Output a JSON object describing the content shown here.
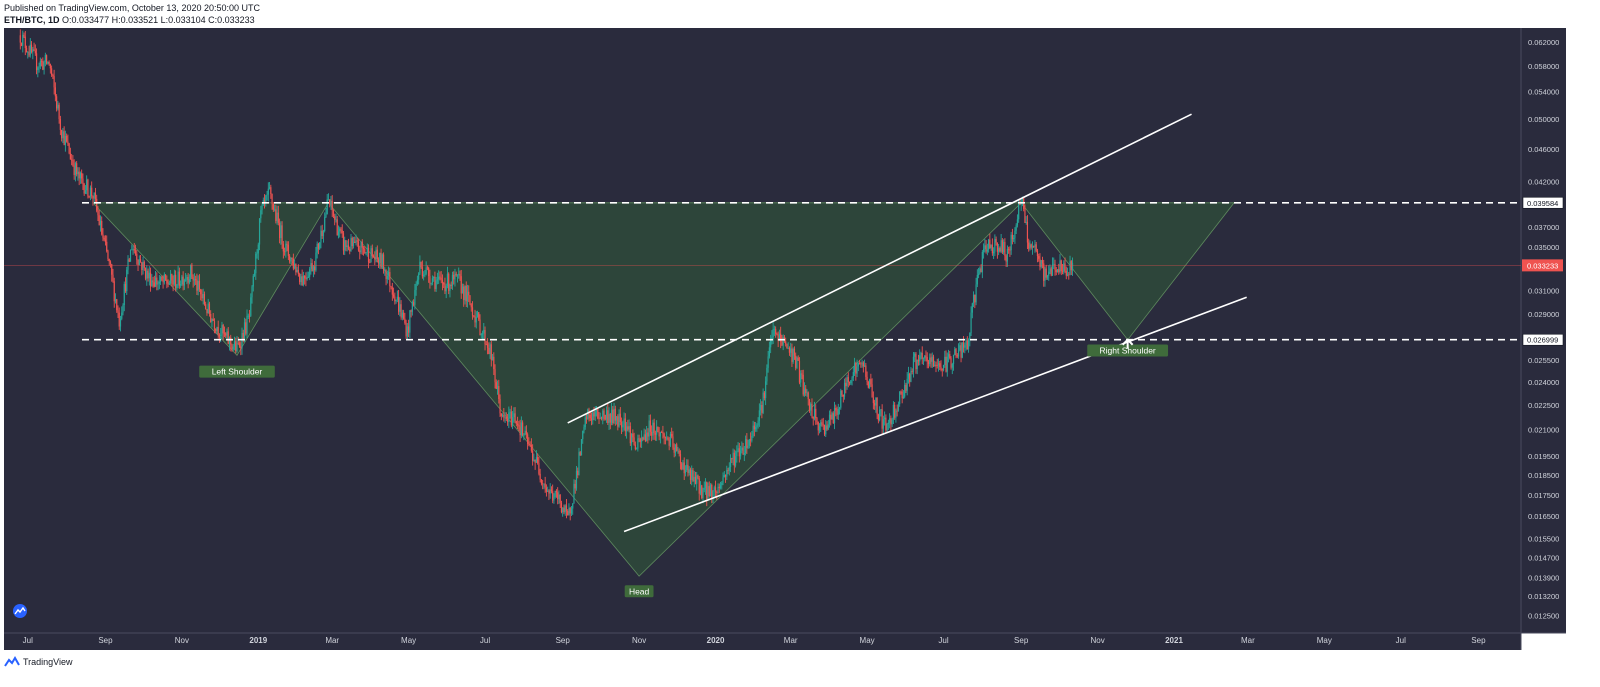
{
  "header": {
    "published": "Published on TradingView.com, October 13, 2020 20:50:00 UTC",
    "symbol": "ETH/BTC, 1D",
    "ohlc": "O:0.033477 H:0.033521 L:0.033104 C:0.033233"
  },
  "footer": {
    "brand": "TradingView"
  },
  "colors": {
    "background": "#2a2b3d",
    "up": "#26a69a",
    "down": "#ef5350",
    "pattern_fill": "#2f4f3a",
    "label_bg": "#3f6b3b",
    "last_price_bg": "#ef5350"
  },
  "chart_data": {
    "type": "candlestick",
    "y_scale": "log",
    "ylim": [
      0.0119,
      0.0645
    ],
    "y_ticks": [
      "0.062000",
      "0.058000",
      "0.054000",
      "0.050000",
      "0.046000",
      "0.042000",
      "0.037000",
      "0.035000",
      "0.033000",
      "0.031000",
      "0.029000",
      "0.025500",
      "0.024000",
      "0.022500",
      "0.021000",
      "0.019500",
      "0.018500",
      "0.017500",
      "0.016500",
      "0.015500",
      "0.014700",
      "0.013900",
      "0.013200",
      "0.012500"
    ],
    "x_range": [
      "2018-06-12",
      "2021-10-05"
    ],
    "x_ticks": [
      {
        "label": "Jul",
        "date": "2018-07-01",
        "bold": false
      },
      {
        "label": "Sep",
        "date": "2018-09-01",
        "bold": false
      },
      {
        "label": "Nov",
        "date": "2018-11-01",
        "bold": false
      },
      {
        "label": "2019",
        "date": "2019-01-01",
        "bold": true
      },
      {
        "label": "Mar",
        "date": "2019-03-01",
        "bold": false
      },
      {
        "label": "May",
        "date": "2019-05-01",
        "bold": false
      },
      {
        "label": "Jul",
        "date": "2019-07-01",
        "bold": false
      },
      {
        "label": "Sep",
        "date": "2019-09-01",
        "bold": false
      },
      {
        "label": "Nov",
        "date": "2019-11-01",
        "bold": false
      },
      {
        "label": "2020",
        "date": "2020-01-01",
        "bold": true
      },
      {
        "label": "Mar",
        "date": "2020-03-01",
        "bold": false
      },
      {
        "label": "May",
        "date": "2020-05-01",
        "bold": false
      },
      {
        "label": "Jul",
        "date": "2020-07-01",
        "bold": false
      },
      {
        "label": "Sep",
        "date": "2020-09-01",
        "bold": false
      },
      {
        "label": "Nov",
        "date": "2020-11-01",
        "bold": false
      },
      {
        "label": "2021",
        "date": "2021-01-01",
        "bold": true
      },
      {
        "label": "Mar",
        "date": "2021-03-01",
        "bold": false
      },
      {
        "label": "May",
        "date": "2021-05-01",
        "bold": false
      },
      {
        "label": "Jul",
        "date": "2021-07-01",
        "bold": false
      },
      {
        "label": "Sep",
        "date": "2021-09-01",
        "bold": false
      }
    ],
    "price_path": [
      [
        "2018-06-25",
        0.0632
      ],
      [
        "2018-07-08",
        0.0585
      ],
      [
        "2018-07-18",
        0.0585
      ],
      [
        "2018-07-28",
        0.0485
      ],
      [
        "2018-08-10",
        0.0425
      ],
      [
        "2018-08-22",
        0.0405
      ],
      [
        "2018-09-05",
        0.0327
      ],
      [
        "2018-09-12",
        0.0285
      ],
      [
        "2018-09-22",
        0.0352
      ],
      [
        "2018-10-05",
        0.0322
      ],
      [
        "2018-10-15",
        0.0316
      ],
      [
        "2018-10-28",
        0.0318
      ],
      [
        "2018-11-08",
        0.0326
      ],
      [
        "2018-11-22",
        0.0292
      ],
      [
        "2018-12-05",
        0.0272
      ],
      [
        "2018-12-15",
        0.0263
      ],
      [
        "2018-12-25",
        0.0288
      ],
      [
        "2019-01-03",
        0.0383
      ],
      [
        "2019-01-10",
        0.0406
      ],
      [
        "2019-01-22",
        0.035
      ],
      [
        "2019-02-05",
        0.032
      ],
      [
        "2019-02-15",
        0.0336
      ],
      [
        "2019-02-26",
        0.0398
      ],
      [
        "2019-03-10",
        0.0352
      ],
      [
        "2019-03-25",
        0.0348
      ],
      [
        "2019-04-10",
        0.0335
      ],
      [
        "2019-04-20",
        0.0307
      ],
      [
        "2019-04-30",
        0.0276
      ],
      [
        "2019-05-10",
        0.0332
      ],
      [
        "2019-05-25",
        0.0316
      ],
      [
        "2019-06-10",
        0.0318
      ],
      [
        "2019-06-22",
        0.0292
      ],
      [
        "2019-07-05",
        0.0262
      ],
      [
        "2019-07-15",
        0.0215
      ],
      [
        "2019-07-25",
        0.0218
      ],
      [
        "2019-08-10",
        0.0193
      ],
      [
        "2019-08-20",
        0.0177
      ],
      [
        "2019-08-30",
        0.0172
      ],
      [
        "2019-09-05",
        0.0163
      ],
      [
        "2019-09-12",
        0.0185
      ],
      [
        "2019-09-20",
        0.0218
      ],
      [
        "2019-10-02",
        0.0219
      ],
      [
        "2019-10-10",
        0.0218
      ],
      [
        "2019-10-20",
        0.0216
      ],
      [
        "2019-10-30",
        0.0199
      ],
      [
        "2019-11-10",
        0.0212
      ],
      [
        "2019-11-25",
        0.0204
      ],
      [
        "2019-12-10",
        0.0186
      ],
      [
        "2019-12-22",
        0.0177
      ],
      [
        "2020-01-02",
        0.0177
      ],
      [
        "2020-01-15",
        0.0194
      ],
      [
        "2020-01-28",
        0.0204
      ],
      [
        "2020-02-08",
        0.0228
      ],
      [
        "2020-02-15",
        0.0275
      ],
      [
        "2020-02-25",
        0.0268
      ],
      [
        "2020-03-05",
        0.0255
      ],
      [
        "2020-03-15",
        0.0225
      ],
      [
        "2020-03-25",
        0.021
      ],
      [
        "2020-04-05",
        0.0218
      ],
      [
        "2020-04-18",
        0.0247
      ],
      [
        "2020-04-28",
        0.0252
      ],
      [
        "2020-05-08",
        0.0224
      ],
      [
        "2020-05-16",
        0.0211
      ],
      [
        "2020-05-28",
        0.0231
      ],
      [
        "2020-06-08",
        0.0254
      ],
      [
        "2020-06-20",
        0.0254
      ],
      [
        "2020-07-01",
        0.0251
      ],
      [
        "2020-07-12",
        0.026
      ],
      [
        "2020-07-20",
        0.0265
      ],
      [
        "2020-07-28",
        0.0322
      ],
      [
        "2020-08-05",
        0.0352
      ],
      [
        "2020-08-14",
        0.0352
      ],
      [
        "2020-08-22",
        0.0342
      ],
      [
        "2020-09-01",
        0.0402
      ],
      [
        "2020-09-06",
        0.0358
      ],
      [
        "2020-09-12",
        0.0344
      ],
      [
        "2020-09-20",
        0.0322
      ],
      [
        "2020-09-28",
        0.0333
      ],
      [
        "2020-10-06",
        0.0326
      ],
      [
        "2020-10-13",
        0.0332
      ]
    ],
    "pattern": {
      "neckline_high": 0.039584,
      "neckline_low": 0.026999,
      "triangles": [
        [
          [
            "2018-08-22",
            0.03958
          ],
          [
            "2018-12-15",
            0.02585
          ],
          [
            "2019-02-26",
            0.03958
          ]
        ],
        [
          [
            "2019-02-26",
            0.03958
          ],
          [
            "2019-11-01",
            0.01395
          ],
          [
            "2020-09-01",
            0.03958
          ]
        ],
        [
          [
            "2020-09-01",
            0.03958
          ],
          [
            "2020-11-25",
            0.027
          ],
          [
            "2021-02-18",
            0.03958
          ]
        ]
      ],
      "labels": [
        {
          "text": "Left Shoulder",
          "date": "2018-12-15",
          "price": 0.0247
        },
        {
          "text": "Head",
          "date": "2019-11-01",
          "price": 0.01337
        },
        {
          "text": "Right Shoulder",
          "date": "2020-11-25",
          "price": 0.0262
        }
      ]
    },
    "trend_lines": [
      {
        "from": [
          "2019-09-05",
          0.0214
        ],
        "to": [
          "2021-01-15",
          0.0507
        ]
      },
      {
        "from": [
          "2019-10-20",
          0.0158
        ],
        "to": [
          "2021-02-28",
          0.0304
        ]
      }
    ],
    "horizontal_lines": [
      {
        "price": 0.039584,
        "label": "0.039584"
      },
      {
        "price": 0.026999,
        "label": "0.026999"
      }
    ],
    "last_price": {
      "price": 0.033233,
      "label": "0.033233"
    }
  }
}
